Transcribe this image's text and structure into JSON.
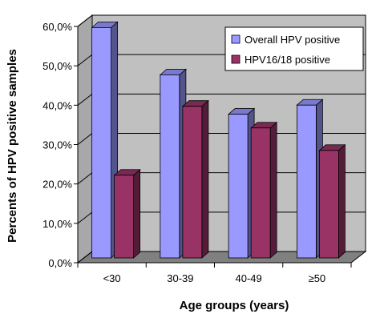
{
  "chart_data": {
    "type": "bar",
    "title": "",
    "xlabel": "Age groups (years)",
    "ylabel": "Percents of HPV positive samples",
    "categories": [
      "<30",
      "30-39",
      "40-49",
      "≥50"
    ],
    "series": [
      {
        "name": "Overall HPV positive",
        "values": [
          58.5,
          46.5,
          36.5,
          38.8
        ],
        "color": "#9999ff"
      },
      {
        "name": "HPV16/18 positive",
        "values": [
          21.0,
          38.5,
          33.0,
          27.3
        ],
        "color": "#993366"
      }
    ],
    "ylim": [
      0,
      60
    ],
    "yticks": [
      "0,0%",
      "10,0%",
      "20,0%",
      "30,0%",
      "40,0%",
      "50,0%",
      "60,0%"
    ],
    "grid": true,
    "legend_position": "top-right",
    "style": "3d-clustered-column",
    "colors": {
      "wall": "#c0c0c0",
      "floor": "#808080",
      "gridline": "#000000"
    }
  }
}
